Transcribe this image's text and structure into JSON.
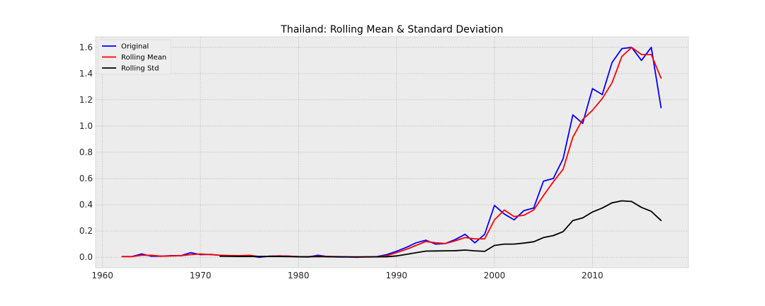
{
  "chart_data": {
    "type": "line",
    "title": "Thailand: Rolling Mean & Standard Deviation",
    "xlabel": "",
    "ylabel": "",
    "xlim": [
      1959.3,
      2019.8
    ],
    "ylim": [
      -0.08,
      1.68
    ],
    "xticks": [
      1960,
      1970,
      1980,
      1990,
      2000,
      2010
    ],
    "yticks": [
      0.0,
      0.2,
      0.4,
      0.6,
      0.8,
      1.0,
      1.2,
      1.4,
      1.6
    ],
    "grid": true,
    "legend_position": "top-left",
    "series": [
      {
        "name": "Original",
        "color": "#0000ff",
        "x": [
          1962,
          1963,
          1964,
          1965,
          1966,
          1967,
          1968,
          1969,
          1970,
          1971,
          1972,
          1973,
          1974,
          1975,
          1976,
          1977,
          1978,
          1979,
          1980,
          1981,
          1982,
          1983,
          1984,
          1985,
          1986,
          1987,
          1988,
          1989,
          1990,
          1991,
          1992,
          1993,
          1994,
          1995,
          1996,
          1997,
          1998,
          1999,
          2000,
          2001,
          2002,
          2003,
          2004,
          2005,
          2006,
          2007,
          2008,
          2009,
          2010,
          2011,
          2012,
          2013,
          2014,
          2015,
          2016,
          2017
        ],
        "values": [
          0.005,
          0.005,
          0.025,
          0.008,
          0.008,
          0.012,
          0.012,
          0.035,
          0.02,
          0.022,
          0.015,
          0.012,
          0.01,
          0.012,
          0.0,
          0.008,
          0.01,
          0.008,
          0.003,
          0.002,
          0.015,
          0.005,
          0.002,
          0.002,
          0.0,
          0.003,
          0.005,
          0.02,
          0.045,
          0.075,
          0.11,
          0.13,
          0.1,
          0.105,
          0.135,
          0.175,
          0.11,
          0.175,
          0.395,
          0.33,
          0.285,
          0.355,
          0.375,
          0.58,
          0.6,
          0.75,
          1.085,
          1.02,
          1.285,
          1.24,
          1.485,
          1.59,
          1.6,
          1.5,
          1.6,
          1.14
        ]
      },
      {
        "name": "Rolling Mean",
        "color": "#ff0000",
        "x": [
          1962,
          1963,
          1964,
          1965,
          1966,
          1967,
          1968,
          1969,
          1970,
          1971,
          1972,
          1973,
          1974,
          1975,
          1976,
          1977,
          1978,
          1979,
          1980,
          1981,
          1982,
          1983,
          1984,
          1985,
          1986,
          1987,
          1988,
          1989,
          1990,
          1991,
          1992,
          1993,
          1994,
          1995,
          1996,
          1997,
          1998,
          1999,
          2000,
          2001,
          2002,
          2003,
          2004,
          2005,
          2006,
          2007,
          2008,
          2009,
          2010,
          2011,
          2012,
          2013,
          2014,
          2015,
          2016,
          2017
        ],
        "values": [
          0.005,
          0.005,
          0.015,
          0.015,
          0.008,
          0.01,
          0.012,
          0.02,
          0.025,
          0.02,
          0.015,
          0.013,
          0.012,
          0.015,
          0.005,
          0.006,
          0.01,
          0.008,
          0.005,
          0.004,
          0.008,
          0.006,
          0.004,
          0.003,
          0.001,
          0.002,
          0.003,
          0.012,
          0.035,
          0.06,
          0.09,
          0.12,
          0.11,
          0.105,
          0.125,
          0.15,
          0.14,
          0.14,
          0.285,
          0.36,
          0.31,
          0.32,
          0.36,
          0.47,
          0.575,
          0.67,
          0.915,
          1.05,
          1.12,
          1.21,
          1.33,
          1.53,
          1.6,
          1.545,
          1.545,
          1.365
        ]
      },
      {
        "name": "Rolling Std",
        "color": "#000000",
        "x": [
          1972,
          1973,
          1974,
          1975,
          1976,
          1977,
          1978,
          1979,
          1980,
          1981,
          1982,
          1983,
          1984,
          1985,
          1986,
          1987,
          1988,
          1989,
          1990,
          1991,
          1992,
          1993,
          1994,
          1995,
          1996,
          1997,
          1998,
          1999,
          2000,
          2001,
          2002,
          2003,
          2004,
          2005,
          2006,
          2007,
          2008,
          2009,
          2010,
          2011,
          2012,
          2013,
          2014,
          2015,
          2016,
          2017
        ],
        "values": [
          0.008,
          0.007,
          0.006,
          0.006,
          0.006,
          0.006,
          0.006,
          0.005,
          0.004,
          0.004,
          0.005,
          0.004,
          0.004,
          0.003,
          0.003,
          0.003,
          0.003,
          0.004,
          0.01,
          0.022,
          0.035,
          0.047,
          0.048,
          0.049,
          0.05,
          0.055,
          0.049,
          0.045,
          0.09,
          0.1,
          0.1,
          0.108,
          0.118,
          0.15,
          0.165,
          0.195,
          0.28,
          0.3,
          0.345,
          0.375,
          0.415,
          0.43,
          0.425,
          0.38,
          0.35,
          0.28
        ]
      }
    ]
  }
}
